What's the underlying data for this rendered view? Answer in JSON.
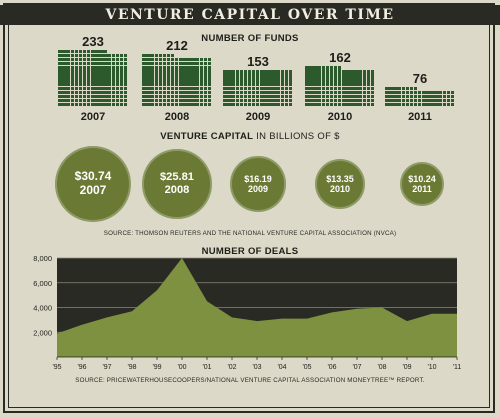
{
  "title": "VENTURE CAPITAL OVER TIME",
  "colors": {
    "background": "#dcd9c8",
    "dark": "#2a2a24",
    "green": "#2d5a2d",
    "olive": "#6a7a35",
    "area": "#7d9140"
  },
  "funds_section": {
    "heading": "NUMBER OF FUNDS"
  },
  "capital_section": {
    "heading_bold": "VENTURE CAPITAL",
    "heading_rest": " IN BILLIONS OF $",
    "source": "SOURCE: THOMSON REUTERS AND THE NATIONAL VENTURE CAPITAL ASSOCIATION (NVCA)"
  },
  "deals_section": {
    "heading": "NUMBER OF DEALS",
    "source": "SOURCE: PRICEWATERHOUSECOOPERS/NATIONAL VENTURE CAPITAL ASSOCIATION MONEYTREE™ REPORT."
  },
  "chart_data": [
    {
      "type": "bar",
      "title": "NUMBER OF FUNDS",
      "categories": [
        "2007",
        "2008",
        "2009",
        "2010",
        "2011"
      ],
      "values": [
        233,
        212,
        153,
        162,
        76
      ],
      "value_labels": [
        "233",
        "212",
        "153",
        "162",
        "76"
      ]
    },
    {
      "type": "bubble",
      "title": "VENTURE CAPITAL IN BILLIONS OF $",
      "categories": [
        "2007",
        "2008",
        "2009",
        "2010",
        "2011"
      ],
      "values": [
        30.74,
        25.81,
        16.19,
        13.35,
        10.24
      ],
      "value_labels": [
        "$30.74",
        "$25.81",
        "$16.19",
        "$13.35",
        "$10.24"
      ]
    },
    {
      "type": "area",
      "title": "NUMBER OF DEALS",
      "x": [
        "'95",
        "'96",
        "'97",
        "'98",
        "'99",
        "'00",
        "'01",
        "'02",
        "'03",
        "'04",
        "'05",
        "'06",
        "'07",
        "'08",
        "'09",
        "'10",
        "'11"
      ],
      "values": [
        1900,
        2600,
        3200,
        3700,
        5400,
        8000,
        4500,
        3200,
        2900,
        3100,
        3100,
        3600,
        3900,
        4000,
        2900,
        3500,
        3500
      ],
      "ylim": [
        0,
        8000
      ],
      "yticks": [
        2000,
        4000,
        6000,
        8000
      ],
      "ytick_labels": [
        "2,000",
        "4,000",
        "6,000",
        "8,000"
      ],
      "grid": true
    }
  ]
}
